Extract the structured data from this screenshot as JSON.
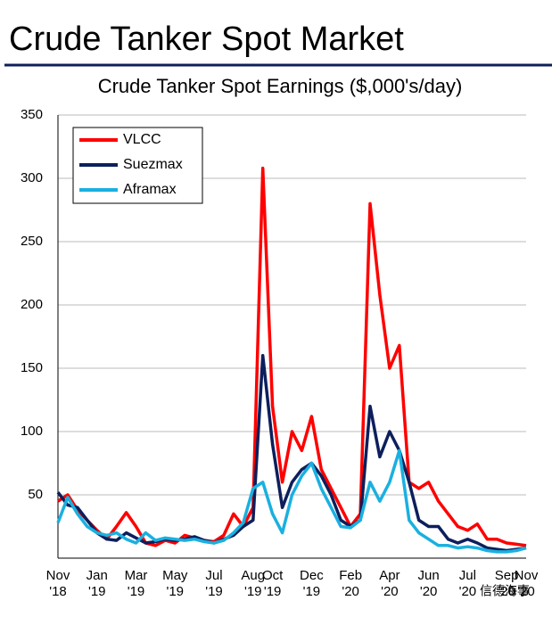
{
  "header": {
    "title": "Crude Tanker Spot Market"
  },
  "watermark": "信德海事",
  "chart_data": {
    "type": "line",
    "title": "Crude Tanker Spot Earnings ($,000's/day)",
    "categories": [
      "Nov '18",
      null,
      null,
      null,
      "Jan '19",
      null,
      null,
      null,
      "Mar '19",
      null,
      null,
      null,
      "May '19",
      null,
      null,
      null,
      "Jul '19",
      null,
      null,
      null,
      "Aug '19",
      null,
      "Oct '19",
      null,
      null,
      null,
      "Dec '19",
      null,
      null,
      null,
      "Feb '20",
      null,
      null,
      null,
      "Apr '20",
      null,
      null,
      null,
      "Jun '20",
      null,
      null,
      null,
      "Jul '20",
      null,
      null,
      null,
      "Sep '20",
      null,
      "Nov '20"
    ],
    "series": [
      {
        "name": "VLCC",
        "color": "#ff0000",
        "values": [
          45,
          50,
          38,
          30,
          22,
          15,
          25,
          36,
          25,
          12,
          10,
          14,
          12,
          18,
          16,
          14,
          13,
          18,
          35,
          25,
          40,
          308,
          120,
          60,
          100,
          85,
          112,
          70,
          55,
          40,
          25,
          35,
          280,
          208,
          150,
          168,
          60,
          55,
          60,
          45,
          35,
          25,
          22,
          27,
          15,
          15,
          12,
          11,
          10
        ]
      },
      {
        "name": "Suezmax",
        "color": "#0d1f5c",
        "values": [
          52,
          42,
          40,
          30,
          20,
          15,
          14,
          20,
          16,
          12,
          13,
          15,
          14,
          15,
          17,
          14,
          12,
          15,
          18,
          25,
          30,
          160,
          90,
          40,
          60,
          70,
          75,
          65,
          50,
          30,
          25,
          30,
          120,
          80,
          100,
          85,
          60,
          30,
          25,
          25,
          15,
          12,
          15,
          12,
          8,
          7,
          6,
          7,
          8
        ]
      },
      {
        "name": "Aframax",
        "color": "#1ab0e0",
        "values": [
          28,
          48,
          35,
          25,
          20,
          18,
          20,
          15,
          12,
          20,
          14,
          16,
          15,
          14,
          15,
          13,
          12,
          14,
          20,
          28,
          55,
          60,
          35,
          20,
          50,
          65,
          75,
          55,
          40,
          25,
          24,
          30,
          60,
          45,
          60,
          85,
          30,
          20,
          15,
          10,
          10,
          8,
          9,
          8,
          6,
          5,
          5,
          6,
          8
        ]
      }
    ],
    "ylim": [
      0,
      350
    ],
    "yticks": [
      50,
      100,
      150,
      200,
      250,
      300,
      350
    ],
    "grid": true,
    "legend": "upper-left"
  }
}
